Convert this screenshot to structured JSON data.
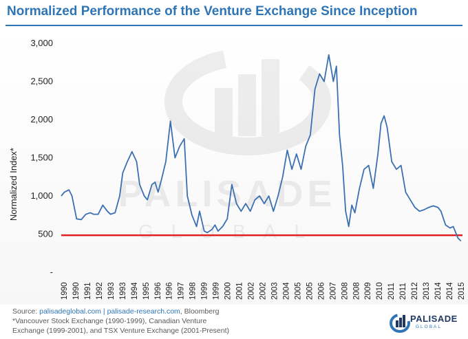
{
  "title": "Normalized Performance of the Venture Exchange Since Inception",
  "watermark": {
    "brand": "PALISADE",
    "sub": "GLOBAL"
  },
  "footer": {
    "source_prefix": "Source: ",
    "link1": "palisadeglobal.com",
    "sep": "  |  ",
    "link2": "palisade-research.com",
    "suffix": ", Bloomberg",
    "note_line1": "*Vancouver Stock Exchange (1990-1999), Canadian Venture",
    "note_line2": "Exchange (1999-2001), and TSX Venture Exchange (2001-Present)"
  },
  "logo": {
    "word": "PALISADE",
    "sub": "GLOBAL"
  },
  "colors": {
    "line": "#3a6fb2",
    "reference": "#e02020",
    "title": "#2e75b6"
  },
  "chart_data": {
    "type": "line",
    "ylabel": "Normalized Index*",
    "xlabel": "",
    "ylim": [
      0,
      3000
    ],
    "xlim": [
      1990,
      2016.1
    ],
    "y_ticks": [
      {
        "value": 0,
        "label": "-"
      },
      {
        "value": 500,
        "label": "500"
      },
      {
        "value": 1000,
        "label": "1,000"
      },
      {
        "value": 1500,
        "label": "1,500"
      },
      {
        "value": 2000,
        "label": "2,000"
      },
      {
        "value": 2500,
        "label": "2,500"
      },
      {
        "value": 3000,
        "label": "3,000"
      }
    ],
    "x_ticks": [
      "1990",
      "1990",
      "1991",
      "1992",
      "1993",
      "1993",
      "1994",
      "1995",
      "1996",
      "1996",
      "1997",
      "1998",
      "1999",
      "1999",
      "2000",
      "2001",
      "2002",
      "2002",
      "2003",
      "2004",
      "2005",
      "2005",
      "2006",
      "2007",
      "2008",
      "2008",
      "2009",
      "2010",
      "2011",
      "2011",
      "2012",
      "2013",
      "2014",
      "2014",
      "2015"
    ],
    "grid": false,
    "reference_line": {
      "value": 485
    },
    "series": [
      {
        "x": [
          1990.0,
          1990.2,
          1990.5,
          1990.7,
          1991.0,
          1991.3,
          1991.6,
          1991.9,
          1992.1,
          1992.4,
          1992.7,
          1993.0,
          1993.2,
          1993.5,
          1993.8,
          1994.0,
          1994.3,
          1994.6,
          1994.9,
          1995.1,
          1995.4,
          1995.6,
          1995.9,
          1996.1,
          1996.3,
          1996.5,
          1996.8,
          1997.1,
          1997.4,
          1997.7,
          1998.0,
          1998.2,
          1998.5,
          1998.8,
          1999.0,
          1999.3,
          1999.5,
          1999.8,
          2000.0,
          2000.2,
          2000.5,
          2000.8,
          2001.1,
          2001.4,
          2001.7,
          2002.0,
          2002.3,
          2002.6,
          2002.9,
          2003.2,
          2003.5,
          2003.8,
          2004.1,
          2004.4,
          2004.7,
          2005.0,
          2005.3,
          2005.6,
          2005.9,
          2006.2,
          2006.5,
          2006.8,
          2007.1,
          2007.4,
          2007.7,
          2007.9,
          2008.1,
          2008.3,
          2008.5,
          2008.7,
          2008.9,
          2009.1,
          2009.4,
          2009.7,
          2010.0,
          2010.3,
          2010.6,
          2010.8,
          2011.0,
          2011.2,
          2011.5,
          2011.8,
          2012.1,
          2012.4,
          2012.7,
          2013.0,
          2013.3,
          2013.6,
          2013.9,
          2014.2,
          2014.5,
          2014.7,
          2015.0,
          2015.3,
          2015.5,
          2015.8,
          2016.0
        ],
        "y": [
          1000,
          1050,
          1080,
          1000,
          700,
          690,
          760,
          780,
          760,
          760,
          880,
          800,
          760,
          780,
          1000,
          1300,
          1450,
          1580,
          1450,
          1150,
          1000,
          950,
          1150,
          1180,
          1050,
          1200,
          1450,
          1980,
          1500,
          1650,
          1750,
          1000,
          750,
          600,
          800,
          540,
          520,
          560,
          620,
          540,
          600,
          700,
          1150,
          900,
          800,
          900,
          800,
          950,
          1000,
          900,
          1000,
          800,
          1000,
          1250,
          1600,
          1350,
          1550,
          1350,
          1650,
          1800,
          2400,
          2600,
          2500,
          2850,
          2500,
          2700,
          1800,
          1400,
          800,
          600,
          880,
          780,
          1100,
          1350,
          1400,
          1100,
          1550,
          1950,
          2050,
          1900,
          1450,
          1350,
          1400,
          1050,
          950,
          850,
          800,
          820,
          850,
          870,
          850,
          800,
          620,
          580,
          600,
          450,
          410
        ]
      }
    ]
  }
}
